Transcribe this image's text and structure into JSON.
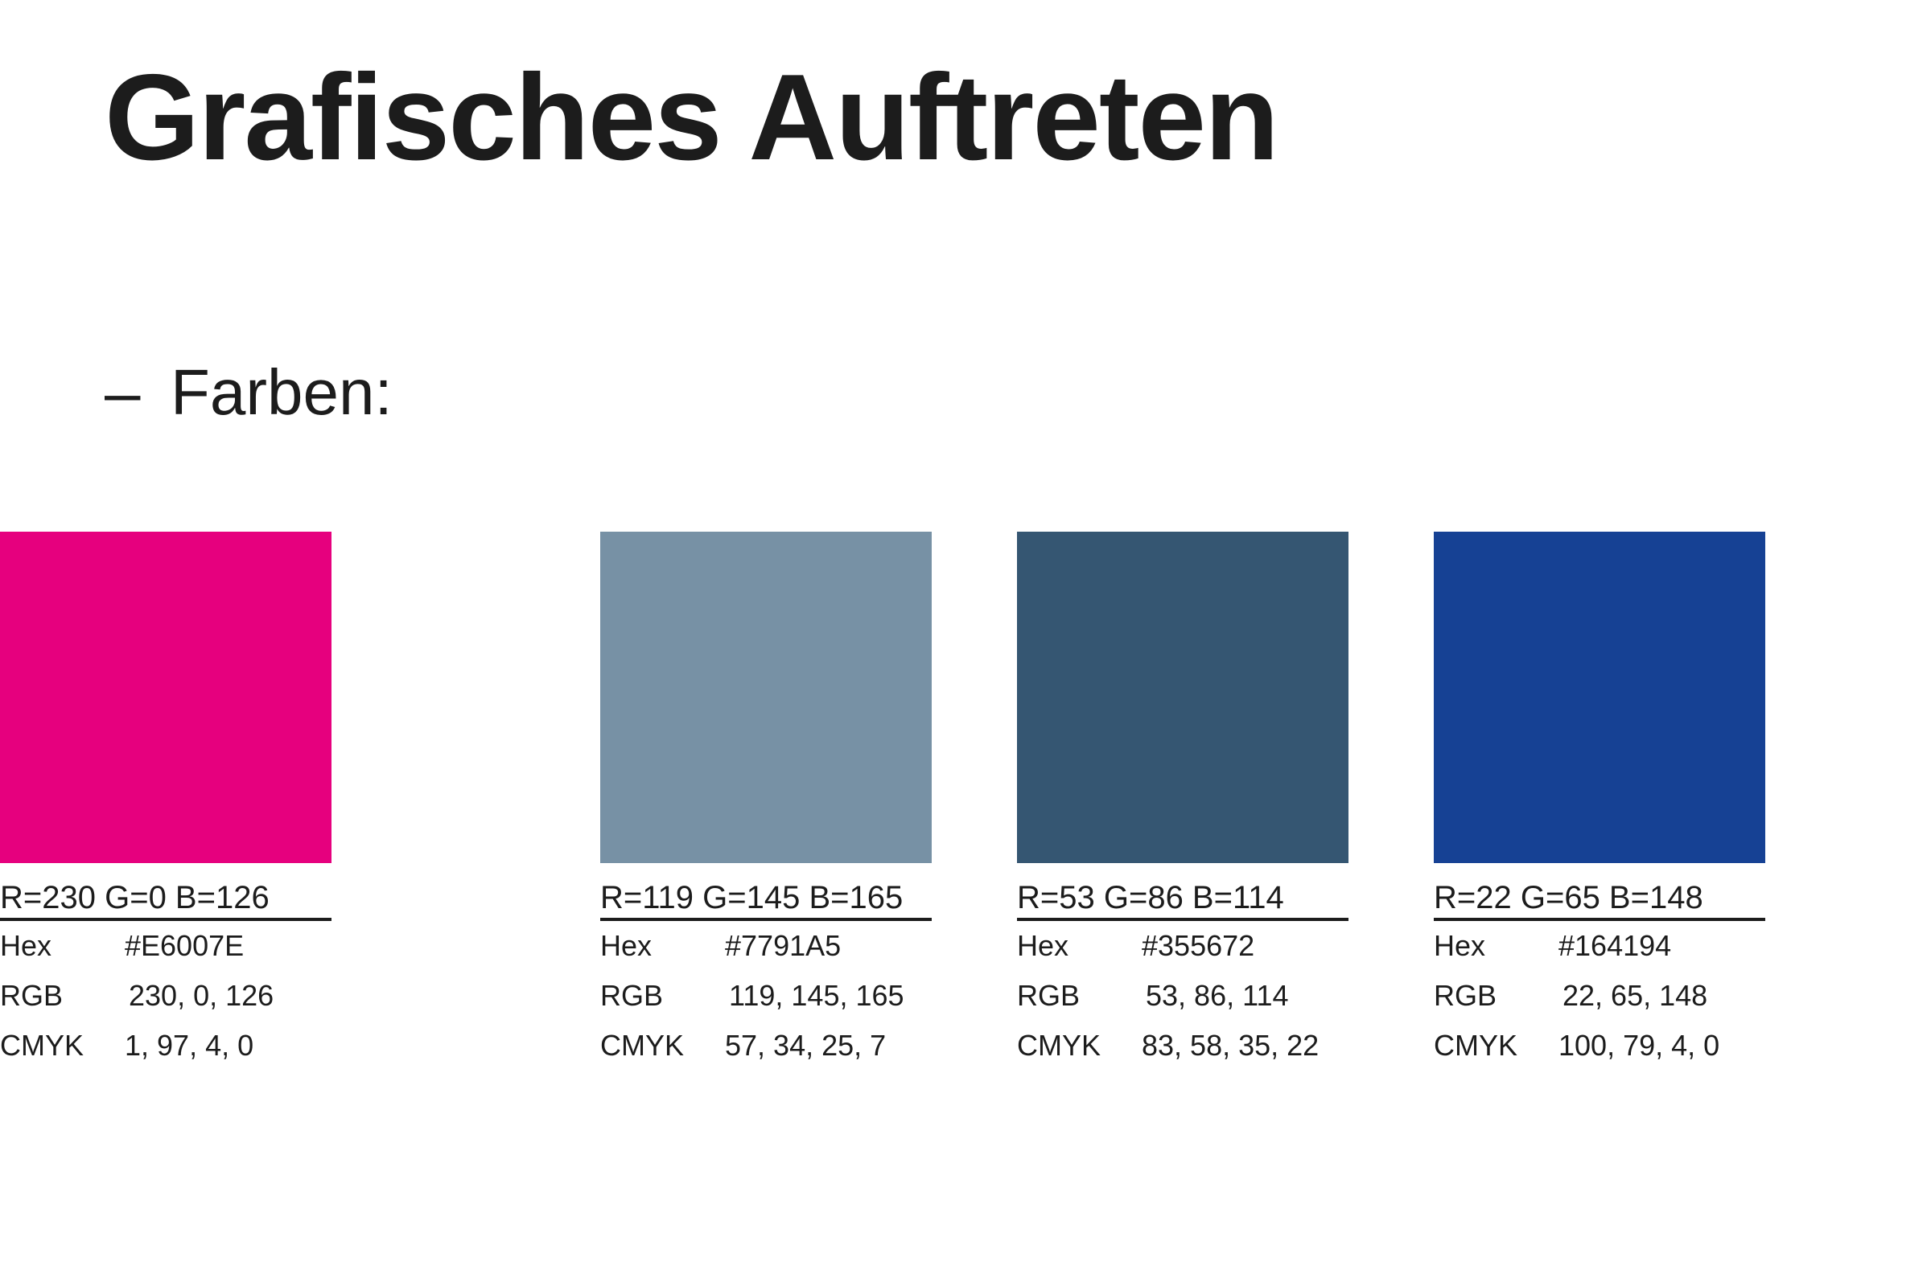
{
  "title": "Grafisches Auftreten",
  "section": {
    "bullet": "–",
    "heading": "Farben:"
  },
  "labels": {
    "hex": "Hex",
    "rgb": "RGB",
    "cmyk": "CMYK"
  },
  "swatches": [
    {
      "color": "#7791A5",
      "heading": "R=119 G=145 B=165",
      "hex": "#7791A5",
      "rgb": "119, 145, 165",
      "cmyk": "57, 34, 25, 7"
    },
    {
      "color": "#355672",
      "heading": "R=53 G=86 B=114",
      "hex": "#355672",
      "rgb": "53, 86, 114",
      "cmyk": "83, 58, 35, 22"
    },
    {
      "color": "#164194",
      "heading": "R=22 G=65 B=148",
      "hex": "#164194",
      "rgb": "22, 65, 148",
      "cmyk": "100, 79, 4, 0"
    },
    {
      "color": "#E6007E",
      "heading": "R=230 G=0 B=126",
      "hex": "#E6007E",
      "rgb": "230, 0, 126",
      "cmyk": "1, 97, 4, 0"
    }
  ]
}
